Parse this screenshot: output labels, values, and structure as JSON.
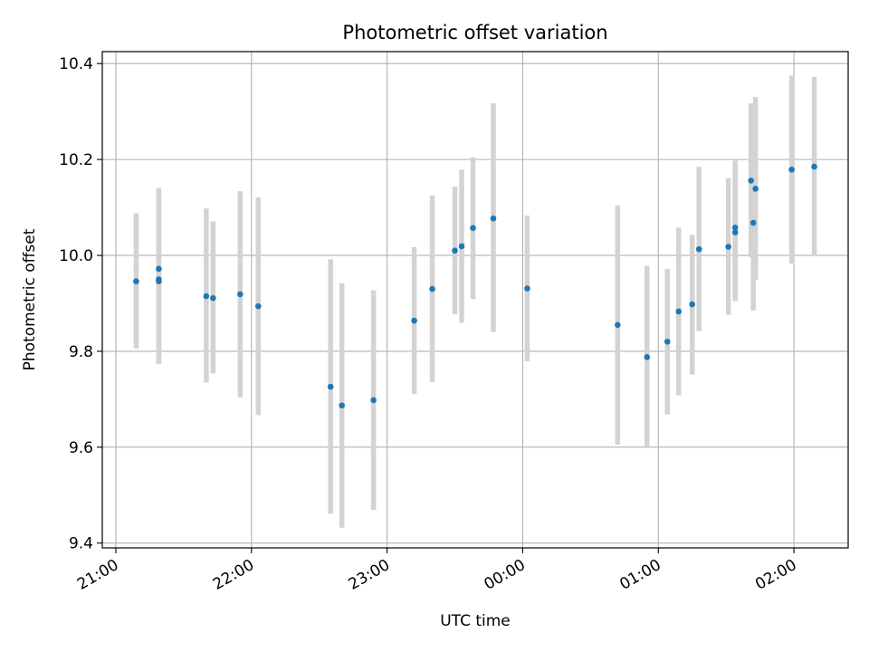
{
  "chart_data": {
    "type": "scatter",
    "title": "Photometric offset variation",
    "xlabel": "UTC time",
    "ylabel": "Photometric offset",
    "x_ticks": [
      "21:00",
      "22:00",
      "23:00",
      "00:00",
      "01:00",
      "02:00"
    ],
    "y_ticks": [
      "9.4",
      "9.6",
      "9.8",
      "10.0",
      "10.2",
      "10.4"
    ],
    "x_axis": "time of day, crossing midnight (UTC)",
    "xlim": [
      "20:54",
      "02:24"
    ],
    "ylim": [
      9.39,
      10.425
    ],
    "grid": true,
    "legend": "none",
    "colors": {
      "point": "#1f77b4",
      "errorbar": "#d3d3d3",
      "grid": "#b0b0b0",
      "axes": "#000000"
    },
    "points": [
      {
        "x": "21:09",
        "y": 9.946,
        "ylow": 9.806,
        "yhigh": 10.088
      },
      {
        "x": "21:19",
        "y": 9.972,
        "ylow": 9.774,
        "yhigh": 10.141
      },
      {
        "x": "21:19",
        "y": 9.95,
        "ylow": 9.774,
        "yhigh": 10.122
      },
      {
        "x": "21:19",
        "y": 9.946,
        "ylow": 9.774,
        "yhigh": 10.122
      },
      {
        "x": "21:40",
        "y": 9.915,
        "ylow": 9.735,
        "yhigh": 10.098
      },
      {
        "x": "21:43",
        "y": 9.911,
        "ylow": 9.754,
        "yhigh": 10.071
      },
      {
        "x": "21:55",
        "y": 9.919,
        "ylow": 9.704,
        "yhigh": 10.134
      },
      {
        "x": "22:03",
        "y": 9.894,
        "ylow": 9.667,
        "yhigh": 10.121
      },
      {
        "x": "22:35",
        "y": 9.726,
        "ylow": 9.461,
        "yhigh": 9.992
      },
      {
        "x": "22:40",
        "y": 9.687,
        "ylow": 9.432,
        "yhigh": 9.942
      },
      {
        "x": "22:54",
        "y": 9.698,
        "ylow": 9.469,
        "yhigh": 9.927
      },
      {
        "x": "23:12",
        "y": 9.864,
        "ylow": 9.711,
        "yhigh": 10.017
      },
      {
        "x": "23:20",
        "y": 9.93,
        "ylow": 9.736,
        "yhigh": 10.125
      },
      {
        "x": "23:30",
        "y": 10.01,
        "ylow": 9.877,
        "yhigh": 10.143
      },
      {
        "x": "23:33",
        "y": 10.019,
        "ylow": 9.859,
        "yhigh": 10.179
      },
      {
        "x": "23:38",
        "y": 10.057,
        "ylow": 9.909,
        "yhigh": 10.205
      },
      {
        "x": "23:47",
        "y": 10.077,
        "ylow": 9.84,
        "yhigh": 10.317
      },
      {
        "x": "00:02",
        "y": 9.931,
        "ylow": 9.779,
        "yhigh": 10.083
      },
      {
        "x": "00:42",
        "y": 9.855,
        "ylow": 9.605,
        "yhigh": 10.104
      },
      {
        "x": "00:55",
        "y": 9.788,
        "ylow": 9.6,
        "yhigh": 9.978
      },
      {
        "x": "01:04",
        "y": 9.82,
        "ylow": 9.668,
        "yhigh": 9.972
      },
      {
        "x": "01:09",
        "y": 9.883,
        "ylow": 9.708,
        "yhigh": 10.058
      },
      {
        "x": "01:15",
        "y": 9.898,
        "ylow": 9.752,
        "yhigh": 10.043
      },
      {
        "x": "01:18",
        "y": 10.013,
        "ylow": 9.842,
        "yhigh": 10.185
      },
      {
        "x": "01:31",
        "y": 10.018,
        "ylow": 9.876,
        "yhigh": 10.161
      },
      {
        "x": "01:34",
        "y": 10.058,
        "ylow": 9.91,
        "yhigh": 10.198
      },
      {
        "x": "01:34",
        "y": 10.048,
        "ylow": 9.905,
        "yhigh": 10.19
      },
      {
        "x": "01:41",
        "y": 10.156,
        "ylow": 9.996,
        "yhigh": 10.317
      },
      {
        "x": "01:42",
        "y": 10.068,
        "ylow": 9.885,
        "yhigh": 10.25
      },
      {
        "x": "01:43",
        "y": 10.139,
        "ylow": 9.949,
        "yhigh": 10.33
      },
      {
        "x": "01:59",
        "y": 10.179,
        "ylow": 9.983,
        "yhigh": 10.375
      },
      {
        "x": "02:09",
        "y": 10.185,
        "ylow": 9.999,
        "yhigh": 10.372
      }
    ]
  }
}
